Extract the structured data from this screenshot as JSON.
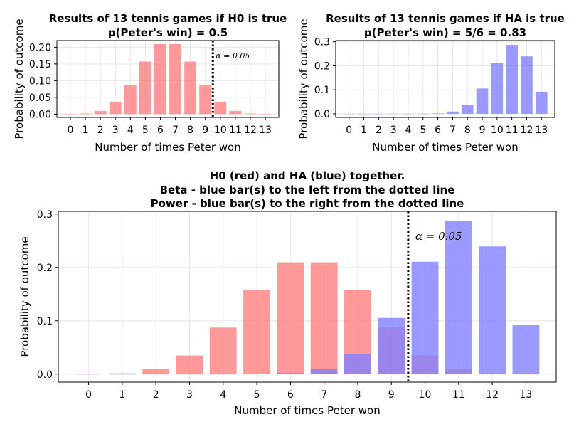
{
  "chart_data": [
    {
      "type": "bar",
      "title": [
        "Results of 13 tennis games if H0 is true",
        "p(Peter's win) = 0.5"
      ],
      "xlabel": "Number of times Peter won",
      "ylabel": "Probability of outcome",
      "categories": [
        0,
        1,
        2,
        3,
        4,
        5,
        6,
        7,
        8,
        9,
        10,
        11,
        12,
        13
      ],
      "ylim": [
        -0.01,
        0.22
      ],
      "yticks": [
        "0.00",
        "0.05",
        "0.10",
        "0.15",
        "0.20"
      ],
      "series": [
        {
          "values": [
            0.0001,
            0.0016,
            0.0095,
            0.0349,
            0.0873,
            0.1571,
            0.2095,
            0.2095,
            0.1571,
            0.0873,
            0.0349,
            0.0095,
            0.0016,
            0.0001
          ],
          "color": "#ff7f7f"
        }
      ],
      "vline": {
        "x": 9.5,
        "label": "α = 0.05"
      },
      "grid": true
    },
    {
      "type": "bar",
      "title": [
        "Results of 13 tennis games if HA is true",
        "p(Peter's win) = 5/6 = 0.83"
      ],
      "xlabel": "Number of times Peter won",
      "ylabel": "Probability of outcome",
      "categories": [
        0,
        1,
        2,
        3,
        4,
        5,
        6,
        7,
        8,
        9,
        10,
        11,
        12,
        13
      ],
      "ylim": [
        -0.015,
        0.305
      ],
      "yticks": [
        "0.0",
        "0.1",
        "0.2",
        "0.3"
      ],
      "series": [
        {
          "values": [
            0,
            0,
            0,
            0,
            0,
            0.0002,
            0.0019,
            0.0095,
            0.0379,
            0.1053,
            0.2106,
            0.2871,
            0.2393,
            0.092
          ],
          "color": "#7f7fff"
        }
      ],
      "grid": true
    },
    {
      "type": "bar",
      "title": [
        "H0 (red) and HA (blue) together.",
        "Beta - blue bar(s) to the left from the dotted line",
        "Power - blue bar(s) to the right from the dotted line"
      ],
      "xlabel": "Number of times Peter won",
      "ylabel": "Probability of outcome",
      "categories": [
        0,
        1,
        2,
        3,
        4,
        5,
        6,
        7,
        8,
        9,
        10,
        11,
        12,
        13
      ],
      "ylim": [
        -0.015,
        0.305
      ],
      "yticks": [
        "0.0",
        "0.1",
        "0.2",
        "0.3"
      ],
      "series": [
        {
          "values": [
            0.0001,
            0.0016,
            0.0095,
            0.0349,
            0.0873,
            0.1571,
            0.2095,
            0.2095,
            0.1571,
            0.0873,
            0.0349,
            0.0095,
            0.0016,
            0.0001
          ],
          "color": "#ff7f7f"
        },
        {
          "values": [
            0,
            0,
            0,
            0,
            0,
            0.0002,
            0.0019,
            0.0095,
            0.0379,
            0.1053,
            0.2106,
            0.2871,
            0.2393,
            0.092
          ],
          "color": "#7f7fff"
        }
      ],
      "vline": {
        "x": 9.5,
        "label": "α = 0.05"
      },
      "grid": true
    }
  ]
}
